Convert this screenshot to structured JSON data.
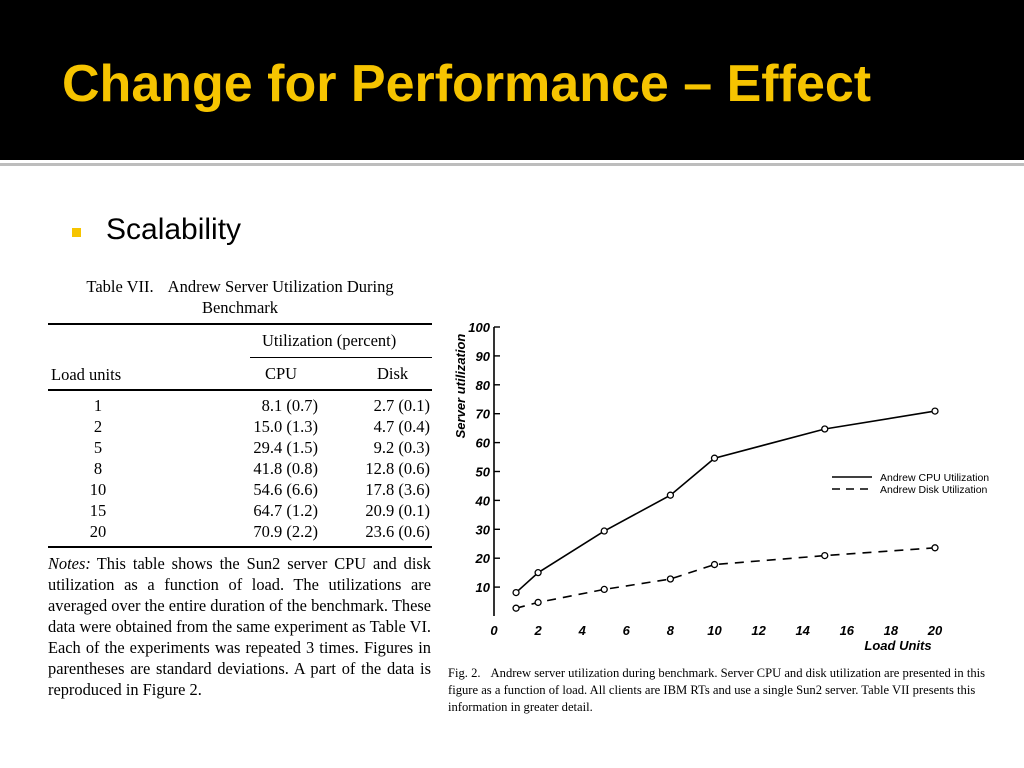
{
  "slide": {
    "title": "Change for Performance – Effect",
    "bullet": "Scalability"
  },
  "table": {
    "caption_id": "Table VII.",
    "caption_text": "Andrew Server Utilization During Benchmark",
    "group_header": "Utilization (percent)",
    "columns": [
      "Load units",
      "CPU",
      "Disk"
    ],
    "rows": [
      {
        "load": "1",
        "cpu": "8.1 (0.7)",
        "disk": "2.7 (0.1)"
      },
      {
        "load": "2",
        "cpu": "15.0 (1.3)",
        "disk": "4.7 (0.4)"
      },
      {
        "load": "5",
        "cpu": "29.4 (1.5)",
        "disk": "9.2 (0.3)"
      },
      {
        "load": "8",
        "cpu": "41.8 (0.8)",
        "disk": "12.8 (0.6)"
      },
      {
        "load": "10",
        "cpu": "54.6 (6.6)",
        "disk": "17.8 (3.6)"
      },
      {
        "load": "15",
        "cpu": "64.7 (1.2)",
        "disk": "20.9 (0.1)"
      },
      {
        "load": "20",
        "cpu": "70.9 (2.2)",
        "disk": "23.6 (0.6)"
      }
    ],
    "notes_label": "Notes:",
    "notes_text": "This table shows the Sun2 server CPU and disk utilization as a function of load. The utilizations are averaged over the entire duration of the benchmark. These data were obtained from the same experiment as Table VI. Each of the experiments was repeated 3 times. Figures in parentheses are standard deviations. A part of the data is reproduced in Figure 2."
  },
  "figure": {
    "caption_id": "Fig. 2.",
    "caption_text": "Andrew server utilization during benchmark. Server CPU and disk utilization are presented in this figure as a function of load. All clients are IBM RTs and use a single Sun2 server. Table VII presents this information in greater detail."
  },
  "chart_data": {
    "type": "line",
    "title": "",
    "xlabel": "Load Units",
    "ylabel": "Server utilization",
    "xlim": [
      0,
      20
    ],
    "ylim": [
      0,
      100
    ],
    "x_ticks": [
      0,
      2,
      4,
      6,
      8,
      10,
      12,
      14,
      16,
      18,
      20
    ],
    "y_ticks": [
      10,
      20,
      30,
      40,
      50,
      60,
      70,
      80,
      90,
      100
    ],
    "grid": false,
    "legend_position": "right",
    "marker": "open-circle",
    "series": [
      {
        "name": "Andrew CPU Utilization",
        "style": "solid",
        "x": [
          1,
          2,
          5,
          8,
          10,
          15,
          20
        ],
        "y": [
          8.1,
          15.0,
          29.4,
          41.8,
          54.6,
          64.7,
          70.9
        ]
      },
      {
        "name": "Andrew Disk Utilization",
        "style": "dashed",
        "x": [
          1,
          2,
          5,
          8,
          10,
          15,
          20
        ],
        "y": [
          2.7,
          4.7,
          9.2,
          12.8,
          17.8,
          20.9,
          23.6
        ]
      }
    ]
  }
}
